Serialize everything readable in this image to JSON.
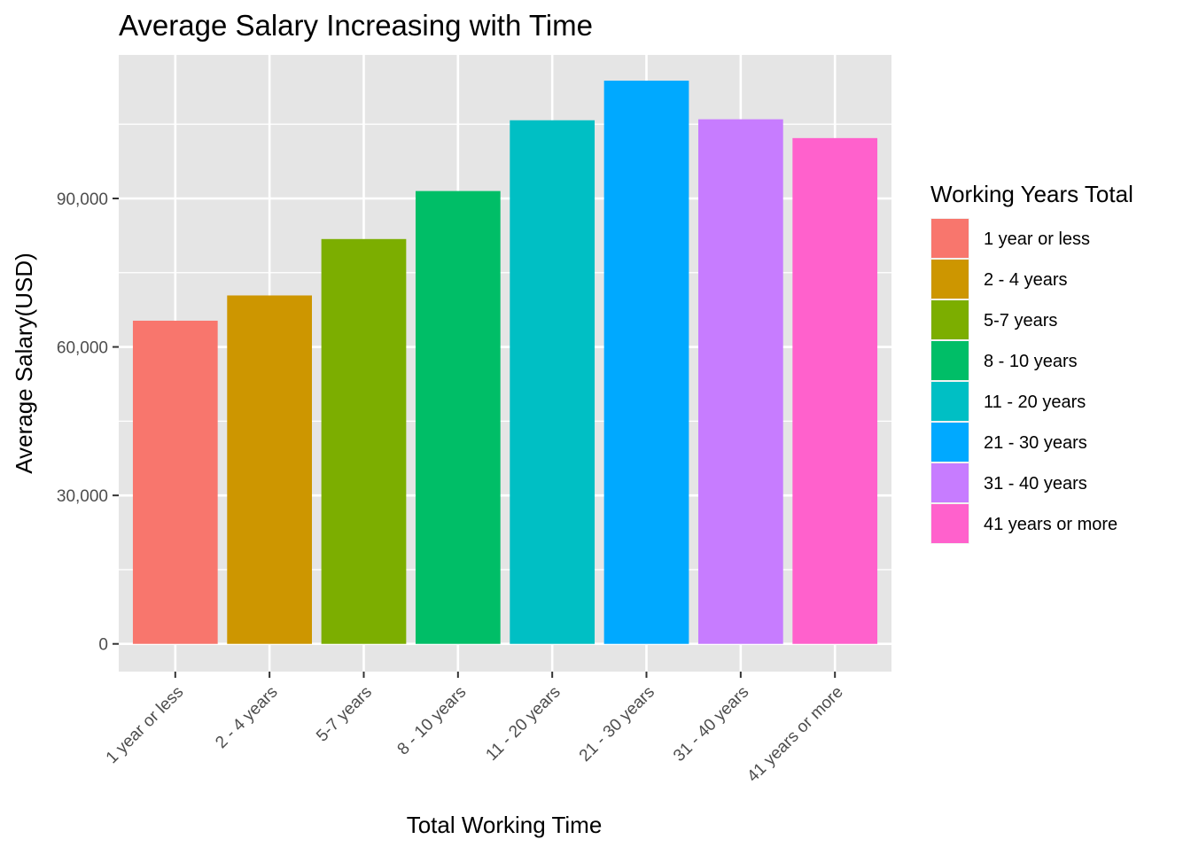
{
  "chart_data": {
    "type": "bar",
    "title": "Average Salary Increasing with Time",
    "xlabel": "Total Working Time",
    "ylabel": "Average Salary(USD)",
    "categories": [
      "1 year or less",
      "2 - 4 years",
      "5-7 years",
      "8 - 10 years",
      "11 - 20 years",
      "21 - 30 years",
      "31 - 40 years",
      "41 years or more"
    ],
    "values": [
      65300,
      70400,
      81800,
      91500,
      105800,
      113800,
      106000,
      102200
    ],
    "colors": [
      "#F8766D",
      "#CD9600",
      "#7CAE00",
      "#00BE67",
      "#00BFC4",
      "#00A9FF",
      "#C77CFF",
      "#FF61CC"
    ],
    "ylim": [
      -5600,
      119000
    ],
    "yticks": [
      0,
      30000,
      60000,
      90000
    ],
    "ytick_labels": [
      "0",
      "30,000",
      "60,000",
      "90,000"
    ],
    "legend": {
      "title": "Working Years Total",
      "position": "right",
      "items": [
        "1 year or less",
        "2 - 4 years",
        "5-7 years",
        "8 - 10 years",
        "11 - 20 years",
        "21 - 30 years",
        "31 - 40 years",
        "41 years or more"
      ]
    },
    "grid": true,
    "panel_background": "#E5E5E5",
    "gridline_color": "#FFFFFF"
  }
}
